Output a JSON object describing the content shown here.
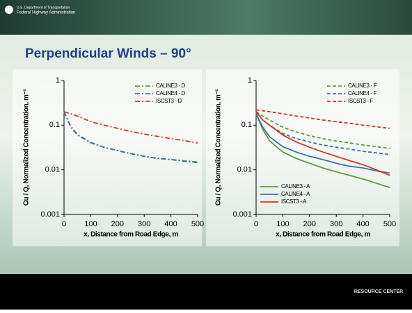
{
  "header": {
    "agency": [
      "U.S. Department of Transportation",
      "Federal Highway Administration"
    ],
    "title": "Perpendicular Winds – 90°"
  },
  "footer": {
    "brand": "RESOURCE CENTER"
  },
  "chart_data": [
    {
      "type": "line",
      "ylabel": "Cu / Q, Normalized Concentration, m⁻¹",
      "xlabel": "x, Distance from Road Edge, m",
      "log_y": true,
      "xlim": [
        0,
        500
      ],
      "ylim": [
        0.001,
        1
      ],
      "xticks": [
        0,
        100,
        200,
        300,
        400,
        500
      ],
      "yticks": [
        0.001,
        0.01,
        0.1,
        1
      ],
      "x": [
        0,
        25,
        50,
        100,
        150,
        200,
        250,
        300,
        350,
        400,
        450,
        500
      ],
      "series": [
        {
          "name": "CALINE3 - D",
          "color": "#5a9e3a",
          "dash": "dashdot",
          "legend": "upper right",
          "values": [
            0.2,
            0.09,
            0.06,
            0.04,
            0.032,
            0.027,
            0.023,
            0.02,
            0.018,
            0.017,
            0.016,
            0.015
          ]
        },
        {
          "name": "CALINE4 - D",
          "color": "#3a6fb0",
          "dash": "dashdot",
          "legend": "upper right",
          "values": [
            0.2,
            0.095,
            0.062,
            0.041,
            0.032,
            0.027,
            0.023,
            0.02,
            0.018,
            0.017,
            0.0155,
            0.0145
          ]
        },
        {
          "name": "ISCST3 - D",
          "color": "#d9331f",
          "dash": "dashdot",
          "legend": "upper right",
          "values": [
            0.2,
            0.18,
            0.16,
            0.12,
            0.1,
            0.085,
            0.072,
            0.063,
            0.056,
            0.05,
            0.045,
            0.04
          ]
        }
      ]
    },
    {
      "type": "line",
      "ylabel": "Cu / Q, Normalized Concentration, m⁻¹",
      "xlabel": "x, Distance from Road Edge, m",
      "log_y": true,
      "xlim": [
        0,
        500
      ],
      "ylim": [
        0.001,
        1
      ],
      "xticks": [
        0,
        100,
        200,
        300,
        400,
        500
      ],
      "yticks": [
        0.001,
        0.01,
        0.1,
        1
      ],
      "x": [
        0,
        25,
        50,
        100,
        150,
        200,
        250,
        300,
        350,
        400,
        450,
        500
      ],
      "series": [
        {
          "name": "CALINE3 - F",
          "color": "#5a9e3a",
          "dash": "dashed",
          "legend": "upper right",
          "values": [
            0.2,
            0.16,
            0.13,
            0.09,
            0.07,
            0.058,
            0.05,
            0.044,
            0.04,
            0.036,
            0.033,
            0.03
          ]
        },
        {
          "name": "CALINE4 - F",
          "color": "#3a6fb0",
          "dash": "dashed",
          "legend": "upper right",
          "values": [
            0.2,
            0.13,
            0.1,
            0.065,
            0.05,
            0.042,
            0.036,
            0.032,
            0.029,
            0.026,
            0.024,
            0.022
          ]
        },
        {
          "name": "ISCST3 - F",
          "color": "#d9331f",
          "dash": "dashed",
          "legend": "upper right",
          "values": [
            0.22,
            0.21,
            0.2,
            0.18,
            0.16,
            0.145,
            0.13,
            0.12,
            0.11,
            0.1,
            0.092,
            0.085
          ]
        },
        {
          "name": "CALINE3 - A",
          "color": "#5a9e3a",
          "dash": "solid",
          "legend": "lower left",
          "values": [
            0.18,
            0.08,
            0.045,
            0.025,
            0.018,
            0.014,
            0.011,
            0.009,
            0.0075,
            0.0062,
            0.005,
            0.004
          ]
        },
        {
          "name": "CALINE4 - A",
          "color": "#3a6fb0",
          "dash": "solid",
          "legend": "lower left",
          "values": [
            0.18,
            0.09,
            0.055,
            0.033,
            0.025,
            0.02,
            0.017,
            0.014,
            0.012,
            0.011,
            0.0095,
            0.0085
          ]
        },
        {
          "name": "ISCST3 - A",
          "color": "#d9331f",
          "dash": "solid",
          "legend": "lower left",
          "values": [
            0.2,
            0.13,
            0.1,
            0.06,
            0.042,
            0.032,
            0.025,
            0.02,
            0.016,
            0.013,
            0.01,
            0.0075
          ]
        }
      ]
    }
  ]
}
